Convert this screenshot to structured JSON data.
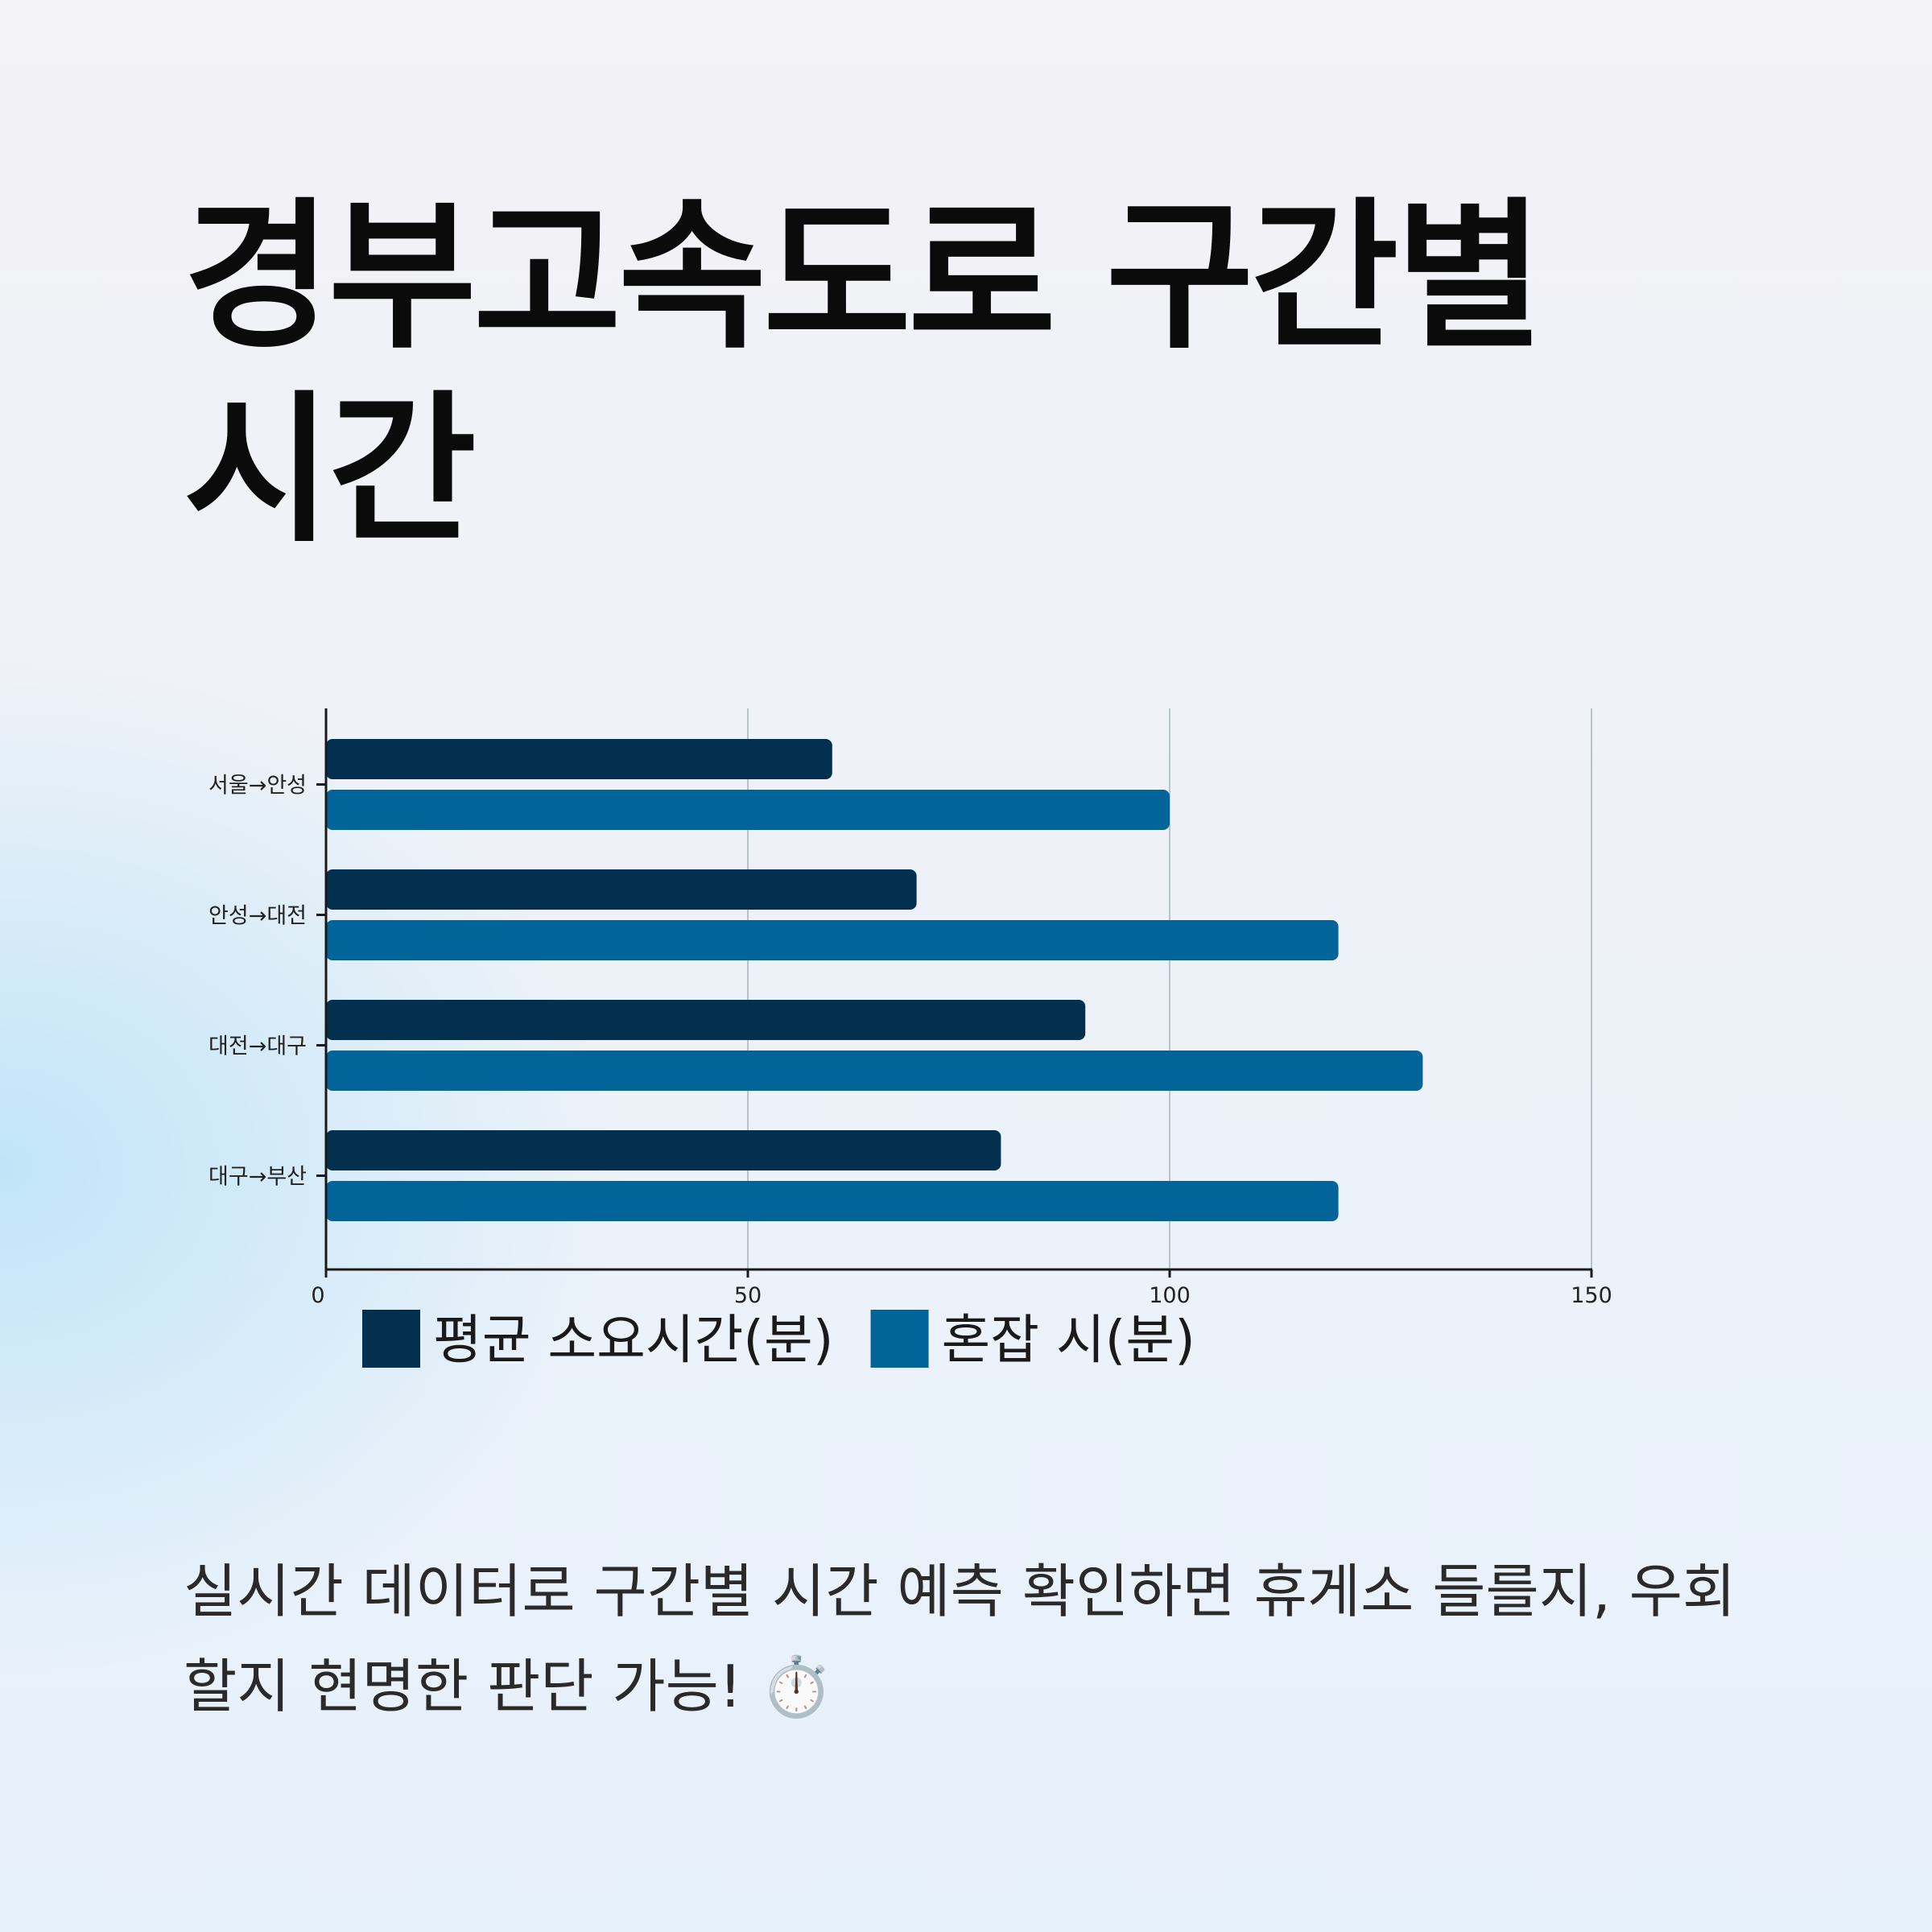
{
  "title": "경부고속도로 구간별 시간",
  "caption": "실시간 데이터로 구간별 시간 예측 확인하면 휴게소 들를지, 우회할지 현명한 판단 가능! ⏱️",
  "colors": {
    "series_avg": "#04304f",
    "series_congested": "#03649a",
    "axis": "#1a1a1a",
    "grid": "#b9c3cd"
  },
  "chart_data": {
    "type": "bar",
    "orientation": "horizontal",
    "categories": [
      "서울→안성",
      "안성→대전",
      "대전→대구",
      "대구→부산"
    ],
    "series": [
      {
        "name": "평균 소요시간(분)",
        "values": [
          60,
          70,
          90,
          80
        ]
      },
      {
        "name": "혼잡 시(분)",
        "values": [
          100,
          120,
          130,
          120
        ]
      }
    ],
    "xlim": [
      0,
      150
    ],
    "xticks": [
      "0",
      "50",
      "100",
      "150"
    ],
    "grid": "vertical",
    "legend": "bottom-left"
  }
}
